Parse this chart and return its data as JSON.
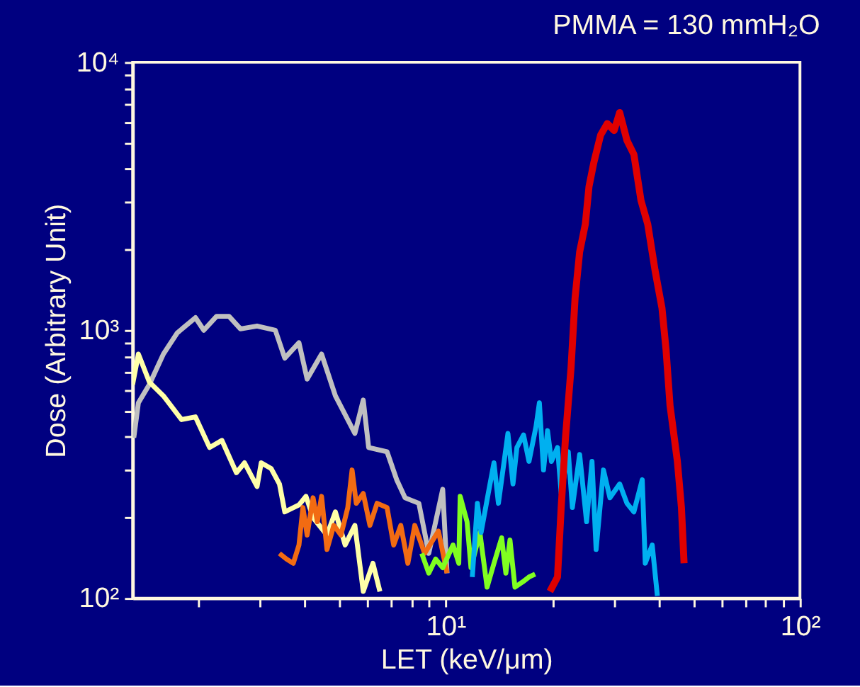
{
  "chart_data": {
    "type": "line",
    "title": "PMMA = 130 mmH₂O",
    "xlabel": "LET (keV/μm)",
    "ylabel": "Dose (Arbitrary Unit)",
    "log": "xy",
    "grid": false,
    "legend": false,
    "marker": "none",
    "line_style": "solid",
    "xlim": [
      1.31,
      100
    ],
    "ylim": [
      100,
      10000
    ],
    "xticks": [
      {
        "value": 2,
        "label": null
      },
      {
        "value": 3,
        "label": null
      },
      {
        "value": 4,
        "label": null
      },
      {
        "value": 5,
        "label": null
      },
      {
        "value": 6,
        "label": null
      },
      {
        "value": 7,
        "label": null
      },
      {
        "value": 8,
        "label": null
      },
      {
        "value": 9,
        "label": null
      },
      {
        "value": 10,
        "label": "10¹"
      },
      {
        "value": 20,
        "label": null
      },
      {
        "value": 30,
        "label": null
      },
      {
        "value": 40,
        "label": null
      },
      {
        "value": 50,
        "label": null
      },
      {
        "value": 60,
        "label": null
      },
      {
        "value": 70,
        "label": null
      },
      {
        "value": 80,
        "label": null
      },
      {
        "value": 90,
        "label": null
      },
      {
        "value": 100,
        "label": "10²"
      }
    ],
    "yticks": [
      {
        "value": 100,
        "label": "10²"
      },
      {
        "value": 200,
        "label": null
      },
      {
        "value": 300,
        "label": null
      },
      {
        "value": 400,
        "label": null
      },
      {
        "value": 500,
        "label": null
      },
      {
        "value": 600,
        "label": null
      },
      {
        "value": 700,
        "label": null
      },
      {
        "value": 800,
        "label": null
      },
      {
        "value": 900,
        "label": null
      },
      {
        "value": 1000,
        "label": "10³"
      },
      {
        "value": 2000,
        "label": null
      },
      {
        "value": 3000,
        "label": null
      },
      {
        "value": 4000,
        "label": null
      },
      {
        "value": 5000,
        "label": null
      },
      {
        "value": 6000,
        "label": null
      },
      {
        "value": 7000,
        "label": null
      },
      {
        "value": 8000,
        "label": null
      },
      {
        "value": 9000,
        "label": null
      },
      {
        "value": 10000,
        "label": "10⁴"
      }
    ],
    "series": [
      {
        "type": "line",
        "color": "#c0c0c0",
        "x": [
          1.32,
          1.36,
          1.46,
          1.6,
          1.75,
          1.97,
          2.08,
          2.26,
          2.45,
          2.64,
          2.94,
          3.31,
          3.52,
          3.86,
          4.07,
          4.47,
          4.89,
          5.55,
          5.86,
          6.07,
          6.84,
          7.28,
          7.69,
          8.41,
          8.97,
          9.82,
          10.1
        ],
        "values": [
          397,
          536,
          627,
          815,
          977,
          1114,
          1000,
          1127,
          1127,
          1012,
          1037,
          1000,
          787,
          898,
          657,
          815,
          569,
          412,
          549,
          365,
          352,
          277,
          237,
          226,
          147,
          255,
          124
        ]
      },
      {
        "type": "line",
        "color": "#ffffa8",
        "x": [
          1.31,
          1.36,
          1.46,
          1.6,
          1.8,
          1.97,
          2.16,
          2.34,
          2.57,
          2.71,
          2.94,
          3.02,
          3.22,
          3.4,
          3.52,
          3.86,
          4.04,
          4.23,
          4.63,
          4.89,
          5.21,
          5.55,
          5.86,
          6.24,
          6.53
        ],
        "values": [
          627,
          815,
          641,
          569,
          464,
          475,
          365,
          388,
          294,
          320,
          261,
          320,
          305,
          267,
          210,
          223,
          240,
          200,
          172,
          210,
          158,
          187,
          106,
          135,
          106
        ]
      },
      {
        "type": "line",
        "color": "#f26b12",
        "x": [
          3.4,
          3.56,
          3.72,
          3.86,
          3.96,
          4.07,
          4.23,
          4.35,
          4.47,
          4.63,
          4.84,
          5.07,
          5.3,
          5.45,
          5.6,
          5.86,
          6.12,
          6.41,
          6.84,
          7.14,
          7.48,
          7.83,
          8.19,
          8.73,
          9.55,
          10.1
        ],
        "values": [
          147,
          140,
          135,
          158,
          218,
          172,
          237,
          193,
          240,
          152,
          187,
          172,
          218,
          301,
          226,
          246,
          187,
          226,
          218,
          158,
          187,
          135,
          187,
          147,
          178,
          124
        ]
      },
      {
        "type": "line",
        "color": "#80ff20",
        "x": [
          8.57,
          8.97,
          9.38,
          9.82,
          10.5,
          10.9,
          11.0,
          11.5,
          11.8,
          12.5,
          13.1,
          13.7,
          14.4,
          14.8,
          15.2,
          15.7,
          16.5,
          17.2,
          17.9
        ],
        "values": [
          147,
          124,
          140,
          130,
          158,
          135,
          240,
          193,
          130,
          176,
          110,
          135,
          168,
          124,
          165,
          110,
          115,
          120,
          123
        ]
      },
      {
        "type": "line",
        "color": "#00b0f0",
        "x": [
          11.9,
          12.3,
          12.6,
          13.2,
          13.7,
          14.1,
          15.0,
          15.5,
          15.9,
          16.6,
          17.2,
          18.0,
          18.4,
          18.9,
          19.4,
          19.9,
          20.7,
          21.2,
          22.2,
          22.8,
          23.9,
          25.0,
          25.9,
          26.6,
          27.9,
          29.1,
          31.0,
          32.5,
          34.0,
          35.9,
          36.6,
          38.3,
          39.6
        ],
        "values": [
          120,
          226,
          176,
          246,
          320,
          226,
          412,
          267,
          365,
          407,
          324,
          437,
          536,
          301,
          422,
          324,
          365,
          246,
          352,
          218,
          344,
          193,
          324,
          152,
          301,
          237,
          267,
          226,
          210,
          277,
          135,
          158,
          102
        ]
      },
      {
        "type": "line",
        "color": "#e00000",
        "x": [
          19.7,
          20.7,
          21.2,
          21.8,
          22.6,
          23.2,
          23.9,
          24.8,
          25.4,
          26.2,
          27.4,
          28.6,
          29.9,
          31.0,
          32.5,
          34.0,
          35.6,
          37.2,
          39.0,
          40.8,
          41.9,
          43.0,
          45.1,
          46.3,
          47.1
        ],
        "values": [
          106,
          120,
          218,
          397,
          723,
          1318,
          1958,
          2486,
          3437,
          4217,
          5358,
          5900,
          5560,
          6494,
          5107,
          4528,
          3050,
          2486,
          1675,
          1211,
          845,
          523,
          324,
          218,
          135
        ]
      }
    ]
  }
}
